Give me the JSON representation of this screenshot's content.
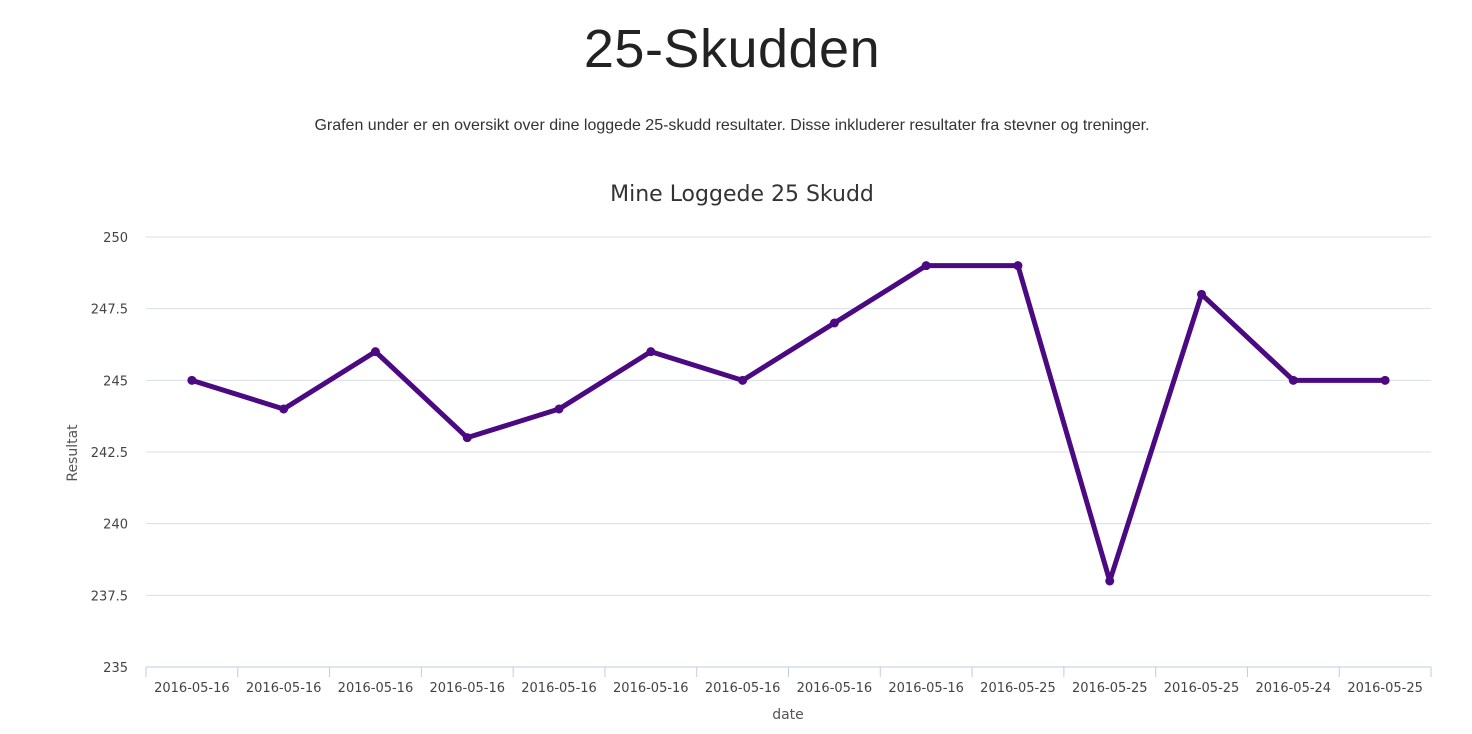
{
  "page": {
    "title": "25-Skudden",
    "intro": "Grafen under er en oversikt over dine loggede 25-skudd resultater. Disse inkluderer resultater fra stevner og treninger."
  },
  "colors": {
    "series": "#4b0a82",
    "grid": "#d8dde6",
    "axis": "#c0cde0",
    "text": "#444444"
  },
  "chart_data": {
    "type": "line",
    "title": "Mine Loggede 25 Skudd",
    "xlabel": "date",
    "ylabel": "Resultat",
    "ylim": [
      235,
      250
    ],
    "y_ticks": [
      235,
      237.5,
      240,
      242.5,
      245,
      247.5,
      250
    ],
    "y_tick_labels": [
      "235",
      "237.5",
      "240",
      "242.5",
      "245",
      "247.5",
      "250"
    ],
    "grid": true,
    "legend": "none",
    "categories": [
      "2016-05-16",
      "2016-05-16",
      "2016-05-16",
      "2016-05-16",
      "2016-05-16",
      "2016-05-16",
      "2016-05-16",
      "2016-05-16",
      "2016-05-16",
      "2016-05-25",
      "2016-05-25",
      "2016-05-25",
      "2016-05-24",
      "2016-05-25"
    ],
    "series": [
      {
        "values": [
          245,
          244,
          246,
          243,
          244,
          246,
          245,
          247,
          249,
          249,
          238,
          248,
          245,
          245
        ]
      }
    ]
  }
}
